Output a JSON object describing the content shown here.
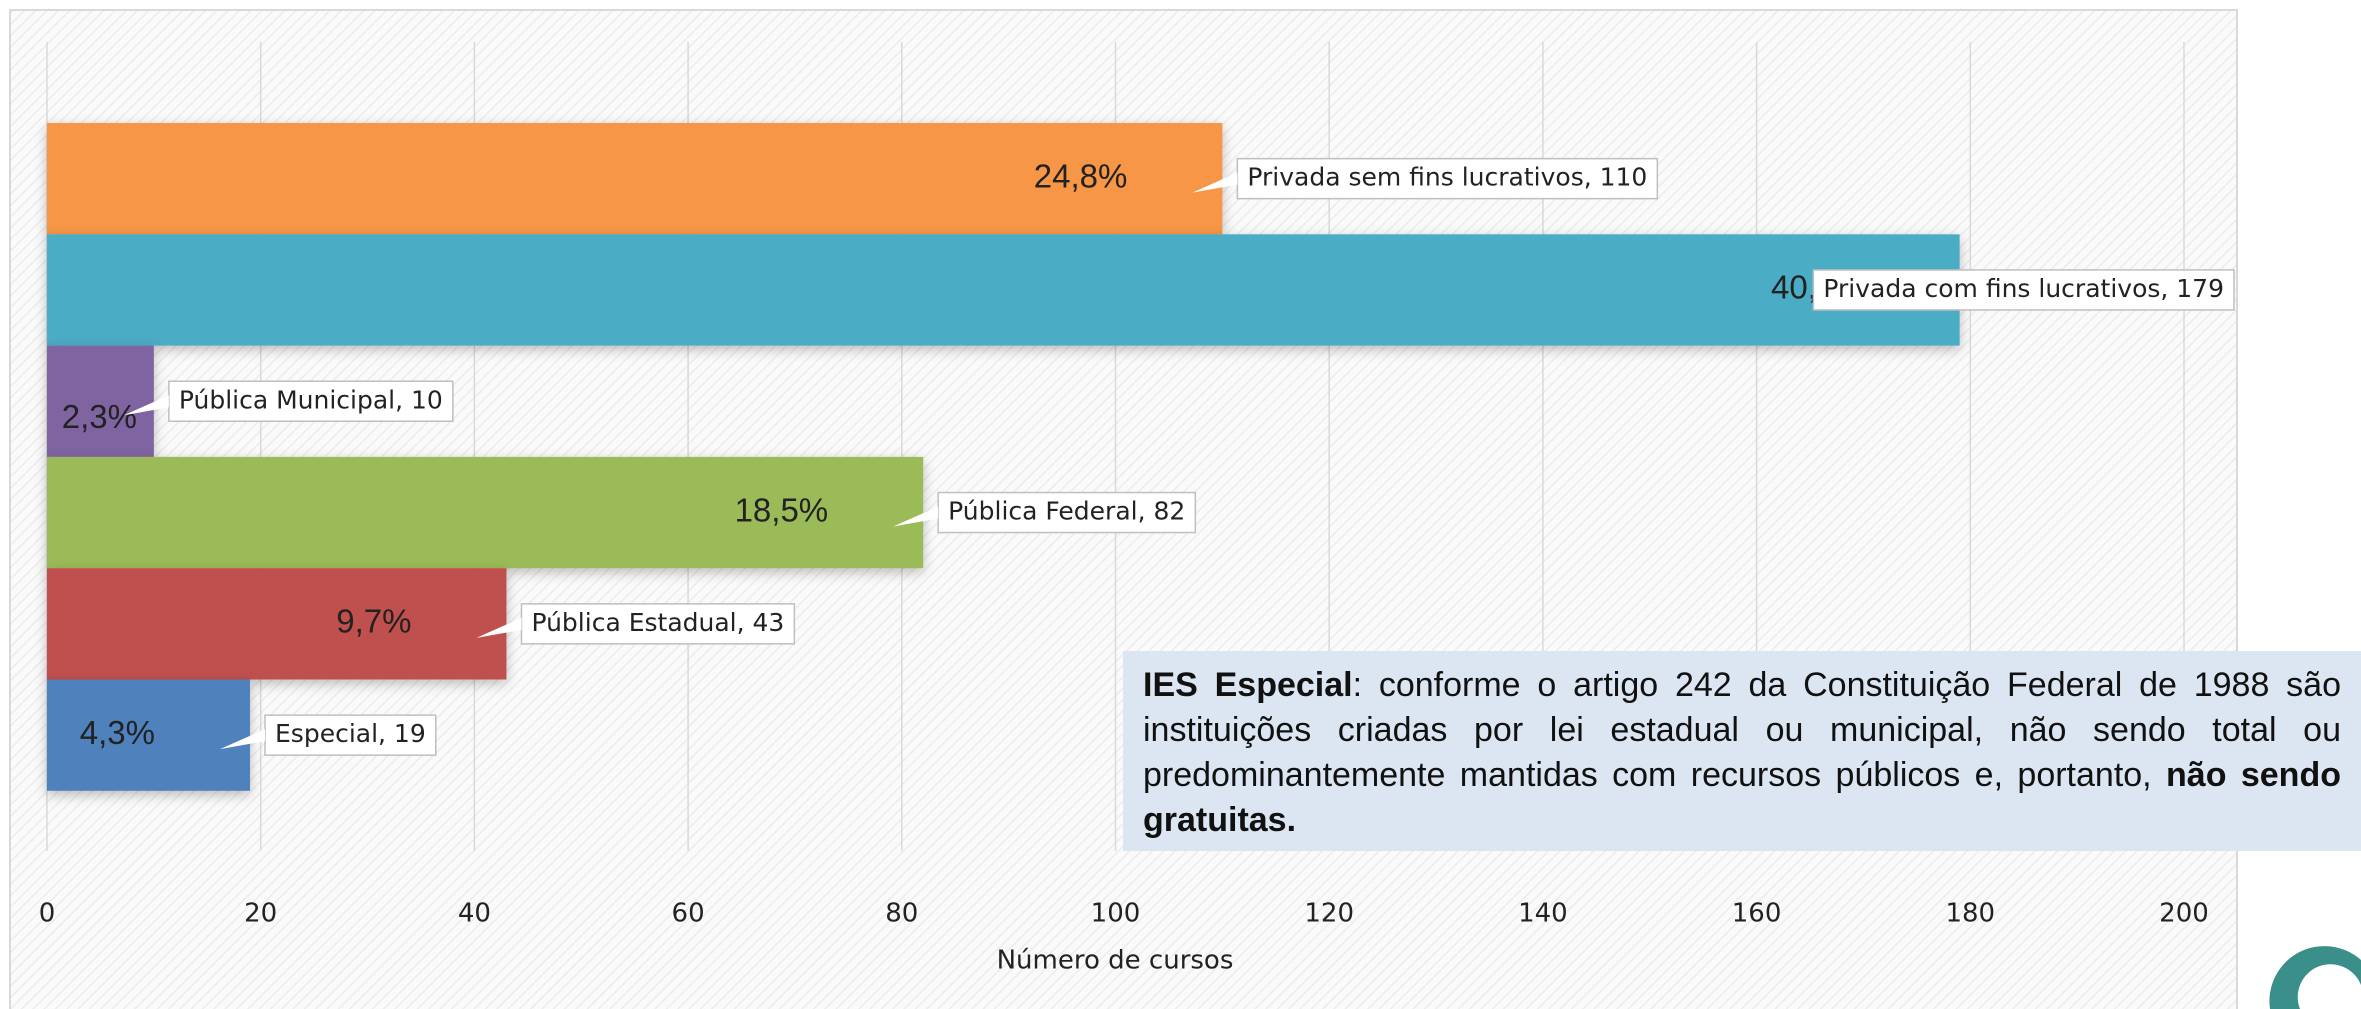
{
  "chart_data": {
    "type": "bar",
    "orientation": "horizontal",
    "x_label": "Número de cursos",
    "categories": [
      "Privada sem fins lucrativos",
      "Privada com fins lucrativos",
      "Pública Municipal",
      "Pública Federal",
      "Pública Estadual",
      "Especial"
    ],
    "values": [
      110,
      179,
      10,
      82,
      43,
      19
    ],
    "value_labels": [
      "Privada sem fins lucrativos, 110",
      "Privada com fins lucrativos, 179",
      "Pública Municipal, 10",
      "Pública Federal, 82",
      "Pública Estadual, 43",
      "Especial, 19"
    ],
    "shares": [
      24.8,
      40.4,
      2.3,
      18.5,
      9.7,
      4.3
    ],
    "share_labels": [
      "24,8%",
      "40,4%",
      "2,3%",
      "18,5%",
      "9,7%",
      "4,3%"
    ],
    "colors": [
      "#f79646",
      "#4bacc6",
      "#8064a2",
      "#9bbb59",
      "#c0504d",
      "#4f81bd"
    ],
    "xlim": [
      0,
      200
    ],
    "xticks": [
      0,
      20,
      40,
      60,
      80,
      100,
      120,
      140,
      160,
      180,
      200
    ],
    "grid": true,
    "note": [
      {
        "text": "IES Especial",
        "bold": true
      },
      {
        "text": ": conforme o artigo 242 da Constituição Federal de 1988 são instituições criadas por lei estadual ou municipal, não sendo total ou predominantemente mantidas com recursos públicos e, portanto, ",
        "bold": false
      },
      {
        "text": "não sendo gratuitas.",
        "bold": true
      }
    ]
  }
}
